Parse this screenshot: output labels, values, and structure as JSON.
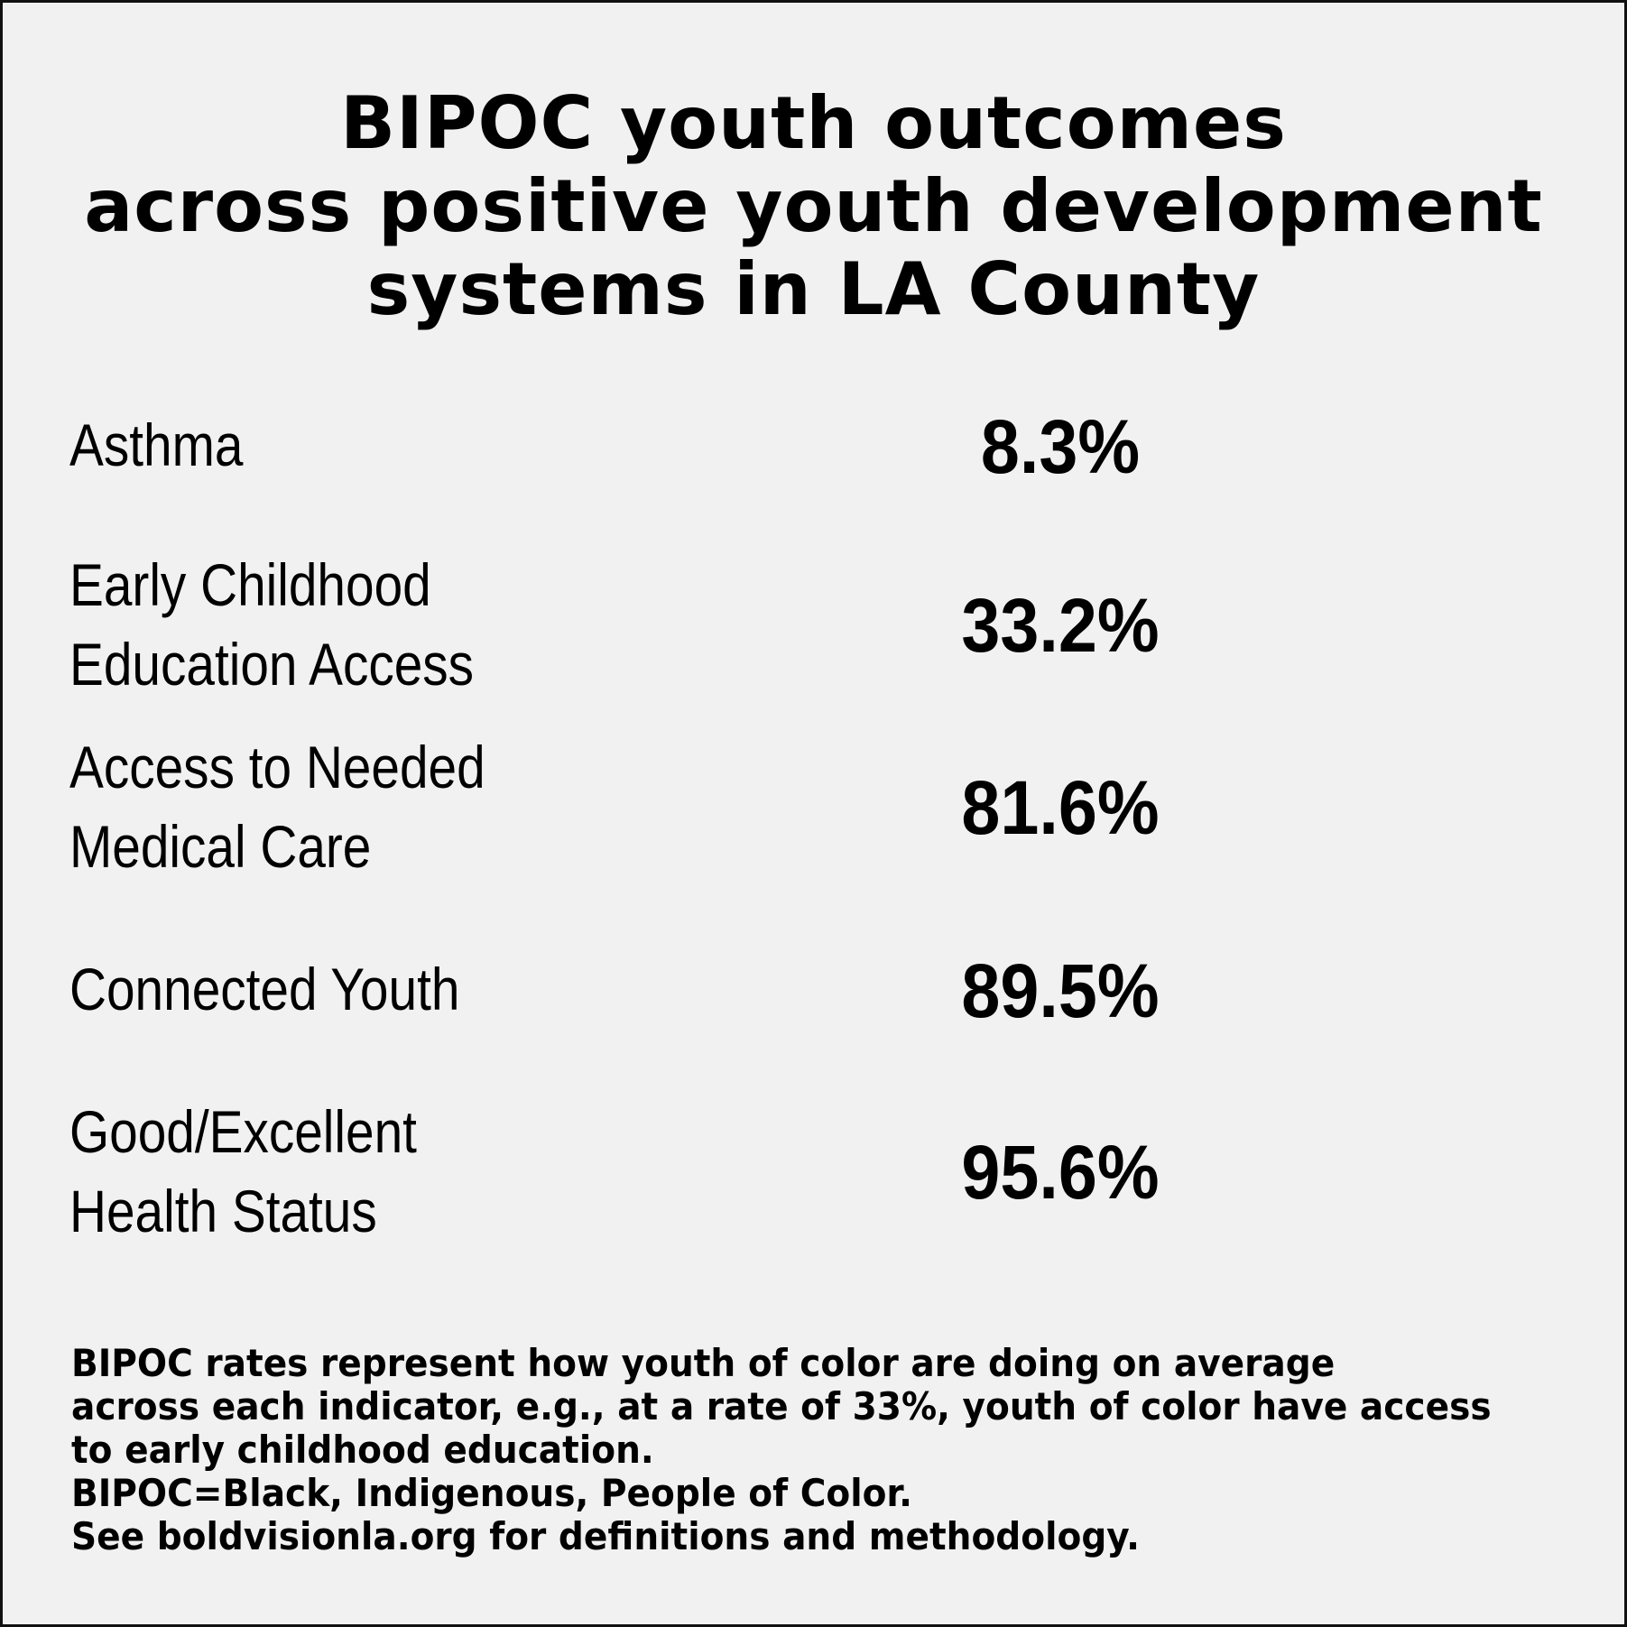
{
  "title": {
    "line1": "BIPOC youth outcomes",
    "line2": "across positive youth development",
    "line3": "systems in LA County"
  },
  "indicators": [
    {
      "label_line1": "Asthma",
      "value": "8.3%"
    },
    {
      "label_line1": "Early Childhood",
      "label_line2": "Education Access",
      "value": "33.2%"
    },
    {
      "label_line1": "Access to Needed",
      "label_line2": "Medical Care",
      "value": "81.6%"
    },
    {
      "label_line1": "Connected Youth",
      "value": "89.5%"
    },
    {
      "label_line1": "Good/Excellent",
      "label_line2": "Health Status",
      "value": "95.6%"
    }
  ],
  "footnote": {
    "line1": "BIPOC rates represent how youth of color are doing on average",
    "line2": "across each indicator, e.g., at a rate of 33%, youth of color have access",
    "line3": "to early childhood education.",
    "line4": "BIPOC=Black, Indigenous, People of Color.",
    "line5": "See boldvisionla.org for definitions and methodology."
  }
}
